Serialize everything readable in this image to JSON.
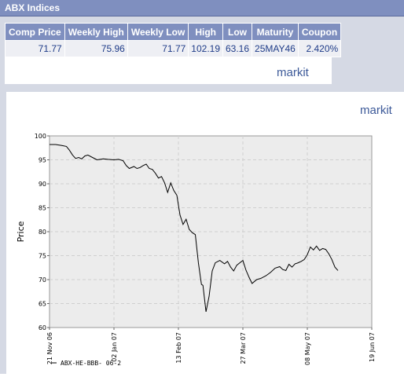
{
  "header": {
    "title": "ABX Indices"
  },
  "table": {
    "columns": [
      "Comp Price",
      "Weekly High",
      "Weekly Low",
      "High",
      "Low",
      "Maturity",
      "Coupon"
    ],
    "row": [
      "71.77",
      "75.96",
      "71.77",
      "102.19",
      "63.16",
      "25MAY46",
      "2.420%"
    ]
  },
  "branding": {
    "logo": "markit"
  },
  "colors": {
    "header_bg": "#7f8fbf",
    "panel_bg": "#d5d9e4",
    "line": "#000000",
    "plot_bg": "#ececec"
  },
  "chart_data": {
    "type": "line",
    "ylabel": "Price",
    "xlabel": "",
    "ylim": [
      60,
      100
    ],
    "yticks": [
      60,
      65,
      70,
      75,
      80,
      85,
      90,
      95,
      100
    ],
    "xlim": [
      "2006-11-21",
      "2007-06-19"
    ],
    "xticks": [
      "21 Nov 06",
      "02 Jan 07",
      "13 Feb 07",
      "27 Mar 07",
      "08 May 07",
      "19 Jun 07"
    ],
    "grid": true,
    "legend_position": "bottom-left",
    "series": [
      {
        "name": "ABX-HE-BBB- 06-2",
        "x": [
          "2006-11-21",
          "2006-11-25",
          "2006-11-29",
          "2006-12-02",
          "2006-12-04",
          "2006-12-06",
          "2006-12-08",
          "2006-12-10",
          "2006-12-12",
          "2006-12-14",
          "2006-12-16",
          "2006-12-19",
          "2006-12-22",
          "2006-12-26",
          "2006-12-29",
          "2007-01-02",
          "2007-01-05",
          "2007-01-08",
          "2007-01-10",
          "2007-01-12",
          "2007-01-15",
          "2007-01-17",
          "2007-01-19",
          "2007-01-21",
          "2007-01-23",
          "2007-01-25",
          "2007-01-27",
          "2007-01-29",
          "2007-01-31",
          "2007-02-02",
          "2007-02-04",
          "2007-02-06",
          "2007-02-08",
          "2007-02-10",
          "2007-02-12",
          "2007-02-14",
          "2007-02-16",
          "2007-02-18",
          "2007-02-20",
          "2007-02-22",
          "2007-02-24",
          "2007-02-26",
          "2007-02-27",
          "2007-02-28",
          "2007-03-01",
          "2007-03-03",
          "2007-03-05",
          "2007-03-07",
          "2007-03-09",
          "2007-03-12",
          "2007-03-15",
          "2007-03-17",
          "2007-03-19",
          "2007-03-21",
          "2007-03-23",
          "2007-03-25",
          "2007-03-27",
          "2007-03-29",
          "2007-03-31",
          "2007-04-02",
          "2007-04-05",
          "2007-04-08",
          "2007-04-11",
          "2007-04-14",
          "2007-04-17",
          "2007-04-20",
          "2007-04-22",
          "2007-04-24",
          "2007-04-26",
          "2007-04-28",
          "2007-04-30",
          "2007-05-02",
          "2007-05-04",
          "2007-05-06",
          "2007-05-08",
          "2007-05-10",
          "2007-05-12",
          "2007-05-14",
          "2007-05-16",
          "2007-05-18",
          "2007-05-20",
          "2007-05-22",
          "2007-05-24",
          "2007-05-26",
          "2007-05-28"
        ],
        "y": [
          98.2,
          98.2,
          98.0,
          97.8,
          97.0,
          96.0,
          95.3,
          95.5,
          95.2,
          95.8,
          96.0,
          95.5,
          95.0,
          95.2,
          95.1,
          95.0,
          95.1,
          94.8,
          93.8,
          93.2,
          93.6,
          93.2,
          93.4,
          93.8,
          94.1,
          93.2,
          93.0,
          92.2,
          91.2,
          91.5,
          90.2,
          88.2,
          90.2,
          88.6,
          87.6,
          83.5,
          81.5,
          82.6,
          80.5,
          79.8,
          79.4,
          73.5,
          71.3,
          69.0,
          68.8,
          63.3,
          66.5,
          71.8,
          73.5,
          74.0,
          73.3,
          73.8,
          72.6,
          71.8,
          73.0,
          73.5,
          74.0,
          72.0,
          70.5,
          69.2,
          70.0,
          70.3,
          70.8,
          71.5,
          72.4,
          72.7,
          72.1,
          71.9,
          73.2,
          72.6,
          73.3,
          73.5,
          73.8,
          74.2,
          75.2,
          76.8,
          76.2,
          77.0,
          76.1,
          76.5,
          76.3,
          75.4,
          74.2,
          72.6,
          71.9
        ]
      }
    ]
  }
}
